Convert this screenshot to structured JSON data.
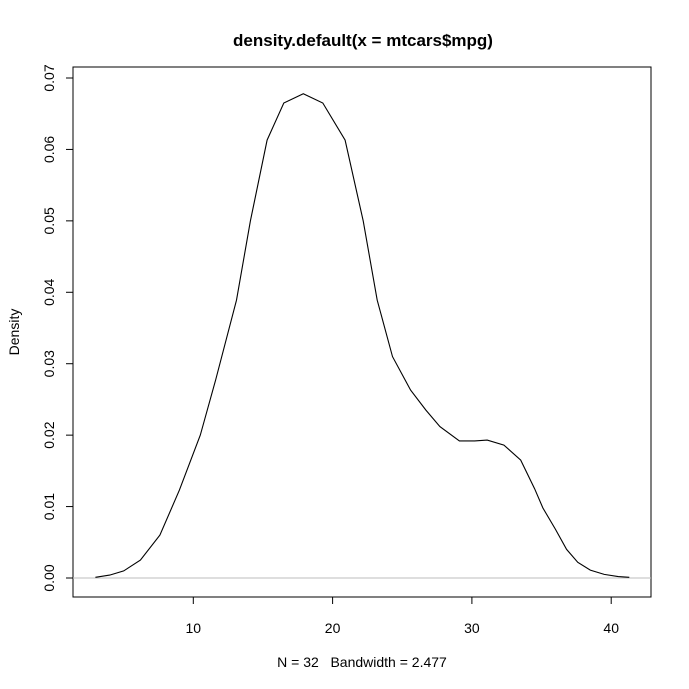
{
  "chart_data": {
    "type": "line",
    "title": "density.default(x = mtcars$mpg)",
    "xlabel": "N = 32   Bandwidth = 2.477",
    "ylabel": "Density",
    "xlim": [
      1.2,
      43.0
    ],
    "ylim": [
      -0.0027,
      0.0709
    ],
    "x_ticks": [
      10,
      20,
      30,
      40
    ],
    "x_tick_labels": [
      "10",
      "20",
      "30",
      "40"
    ],
    "y_ticks": [
      0.0,
      0.01,
      0.02,
      0.03,
      0.04,
      0.05,
      0.06,
      0.07
    ],
    "y_tick_labels": [
      "0.00",
      "0.01",
      "0.02",
      "0.03",
      "0.04",
      "0.05",
      "0.06",
      "0.07"
    ],
    "grid": false,
    "legend": null,
    "baseline": {
      "y": 0,
      "color": "#bebebe"
    },
    "series": [
      {
        "name": "density",
        "color": "#000000",
        "x": [
          2.97,
          4.0,
          5.0,
          6.2,
          7.6,
          9.0,
          10.5,
          11.6,
          13.1,
          14.1,
          15.3,
          16.5,
          17.9,
          19.3,
          20.9,
          22.2,
          23.2,
          24.3,
          25.6,
          26.7,
          27.7,
          29.1,
          30.2,
          31.1,
          32.3,
          33.5,
          34.5,
          35.1,
          36.0,
          36.8,
          37.6,
          38.5,
          39.5,
          40.5,
          41.3
        ],
        "y": [
          0.0001,
          0.0004,
          0.001,
          0.0025,
          0.006,
          0.0123,
          0.02,
          0.0277,
          0.0389,
          0.05,
          0.0613,
          0.0665,
          0.0678,
          0.0665,
          0.0613,
          0.05,
          0.0389,
          0.031,
          0.0263,
          0.0235,
          0.0212,
          0.0192,
          0.0192,
          0.0193,
          0.0186,
          0.0165,
          0.0125,
          0.0098,
          0.0068,
          0.004,
          0.0022,
          0.0011,
          0.0005,
          0.0002,
          0.0001
        ]
      }
    ]
  },
  "plot": {
    "title": "density.default(x = mtcars$mpg)",
    "xlabel": "N = 32   Bandwidth = 2.477",
    "ylabel": "Density"
  }
}
